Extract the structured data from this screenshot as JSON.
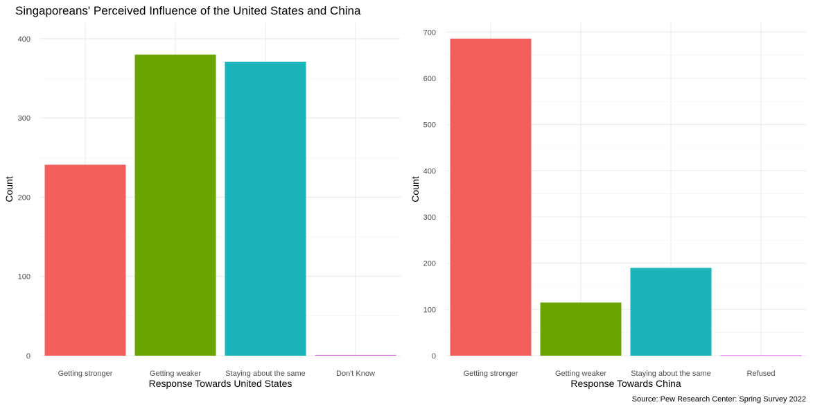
{
  "title": "Singaporeans' Perceived Influence of the United States and China",
  "caption": "Source: Pew Research Center: Spring Survey 2022",
  "colors": {
    "getting_stronger": "#F25F5C",
    "getting_weaker": "#6BA503",
    "staying_same": "#1AB4BA",
    "other": "#E06DE7"
  },
  "chart_data": [
    {
      "type": "bar",
      "categories": [
        "Getting stronger",
        "Getting weaker",
        "Staying about the same",
        "Don't Know"
      ],
      "values": [
        241,
        380,
        371,
        1
      ],
      "xlabel": "Response Towards United States",
      "ylabel": "Count",
      "ylim": [
        0,
        420
      ],
      "yticks": [
        0,
        100,
        200,
        300,
        400
      ],
      "grid": true,
      "legend": "none"
    },
    {
      "type": "bar",
      "categories": [
        "Getting stronger",
        "Getting weaker",
        "Staying about the same",
        "Refused"
      ],
      "values": [
        686,
        115,
        190,
        1
      ],
      "xlabel": "Response Towards China",
      "ylabel": "Count",
      "ylim": [
        0,
        720
      ],
      "yticks": [
        0,
        100,
        200,
        300,
        400,
        500,
        600,
        700
      ],
      "grid": true,
      "legend": "none"
    }
  ]
}
